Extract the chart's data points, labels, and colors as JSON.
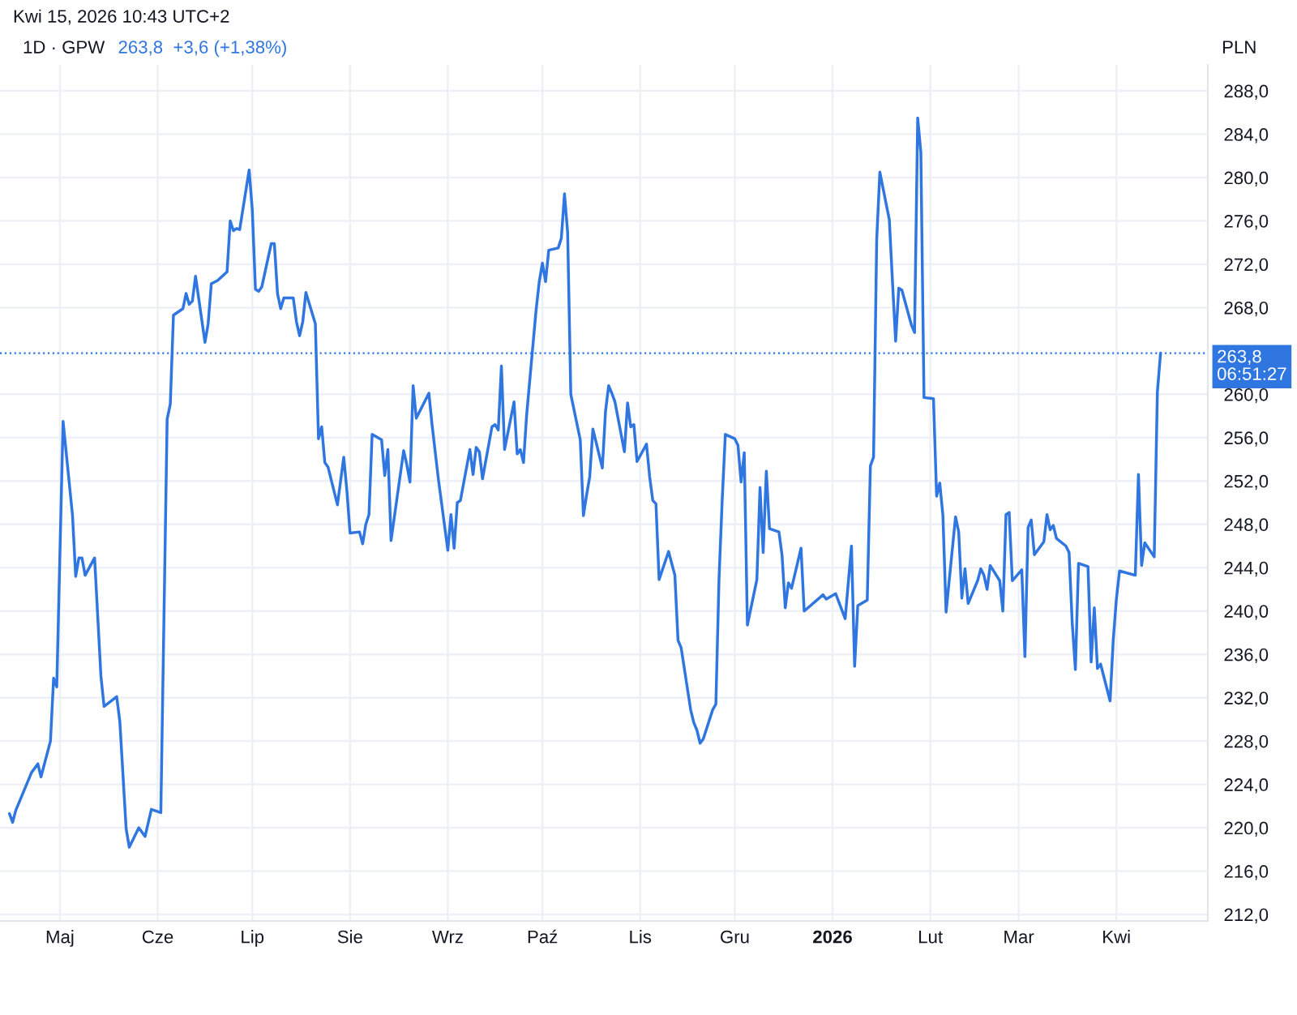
{
  "chart_data": {
    "type": "line",
    "title": "1D · GPW",
    "subtitle": "263,8  +3,6 (+1,38%)",
    "ylabel": "PLN",
    "annotations": [
      "Kwi 15, 2026 10:43 UTC+2"
    ],
    "x": [
      "2025-04-15",
      "2025-04-16",
      "2025-04-17",
      "2025-04-22",
      "2025-04-24",
      "2025-04-25",
      "2025-04-28",
      "2025-04-29",
      "2025-04-30",
      "2025-05-02",
      "2025-05-05",
      "2025-05-06",
      "2025-05-07",
      "2025-05-08",
      "2025-05-09",
      "2025-05-12",
      "2025-05-14",
      "2025-05-15",
      "2025-05-19",
      "2025-05-20",
      "2025-05-22",
      "2025-05-23",
      "2025-05-26",
      "2025-05-28",
      "2025-05-30",
      "2025-06-02",
      "2025-06-04",
      "2025-06-05",
      "2025-06-06",
      "2025-06-09",
      "2025-06-10",
      "2025-06-11",
      "2025-06-12",
      "2025-06-13",
      "2025-06-16",
      "2025-06-17",
      "2025-06-18",
      "2025-06-20",
      "2025-06-23",
      "2025-06-24",
      "2025-06-25",
      "2025-06-26",
      "2025-06-27",
      "2025-06-30",
      "2025-07-01",
      "2025-07-02",
      "2025-07-03",
      "2025-07-04",
      "2025-07-07",
      "2025-07-08",
      "2025-07-09",
      "2025-07-10",
      "2025-07-11",
      "2025-07-14",
      "2025-07-15",
      "2025-07-16",
      "2025-07-17",
      "2025-07-18",
      "2025-07-21",
      "2025-07-22",
      "2025-07-23",
      "2025-07-24",
      "2025-07-25",
      "2025-07-28",
      "2025-07-30",
      "2025-07-31",
      "2025-08-01",
      "2025-08-04",
      "2025-08-05",
      "2025-08-06",
      "2025-08-07",
      "2025-08-08",
      "2025-08-11",
      "2025-08-12",
      "2025-08-13",
      "2025-08-14",
      "2025-08-18",
      "2025-08-19",
      "2025-08-20",
      "2025-08-21",
      "2025-08-22",
      "2025-08-26",
      "2025-08-27",
      "2025-08-29",
      "2025-09-01",
      "2025-09-02",
      "2025-09-03",
      "2025-09-04",
      "2025-09-05",
      "2025-09-08",
      "2025-09-09",
      "2025-09-10",
      "2025-09-11",
      "2025-09-12",
      "2025-09-15",
      "2025-09-16",
      "2025-09-17",
      "2025-09-18",
      "2025-09-19",
      "2025-09-22",
      "2025-09-23",
      "2025-09-24",
      "2025-09-25",
      "2025-09-26",
      "2025-09-29",
      "2025-09-30",
      "2025-10-01",
      "2025-10-02",
      "2025-10-03",
      "2025-10-06",
      "2025-10-07",
      "2025-10-08",
      "2025-10-09",
      "2025-10-10",
      "2025-10-13",
      "2025-10-14",
      "2025-10-15",
      "2025-10-16",
      "2025-10-17",
      "2025-10-20",
      "2025-10-21",
      "2025-10-22",
      "2025-10-23",
      "2025-10-24",
      "2025-10-27",
      "2025-10-28",
      "2025-10-29",
      "2025-10-30",
      "2025-10-31",
      "2025-11-03",
      "2025-11-04",
      "2025-11-05",
      "2025-11-06",
      "2025-11-07",
      "2025-11-10",
      "2025-11-12",
      "2025-11-13",
      "2025-11-14",
      "2025-11-17",
      "2025-11-18",
      "2025-11-19",
      "2025-11-20",
      "2025-11-21",
      "2025-11-24",
      "2025-11-25",
      "2025-11-26",
      "2025-11-27",
      "2025-11-28",
      "2025-12-01",
      "2025-12-02",
      "2025-12-03",
      "2025-12-04",
      "2025-12-05",
      "2025-12-08",
      "2025-12-09",
      "2025-12-10",
      "2025-12-11",
      "2025-12-12",
      "2025-12-15",
      "2025-12-16",
      "2025-12-17",
      "2025-12-18",
      "2025-12-19",
      "2025-12-22",
      "2025-12-23",
      "2025-12-29",
      "2025-12-30",
      "2026-01-02",
      "2026-01-05",
      "2026-01-07",
      "2026-01-08",
      "2026-01-09",
      "2026-01-12",
      "2026-01-13",
      "2026-01-14",
      "2026-01-15",
      "2026-01-16",
      "2026-01-19",
      "2026-01-20",
      "2026-01-21",
      "2026-01-22",
      "2026-01-23",
      "2026-01-26",
      "2026-01-27",
      "2026-01-28",
      "2026-01-29",
      "2026-01-30",
      "2026-02-02",
      "2026-02-03",
      "2026-02-04",
      "2026-02-05",
      "2026-02-06",
      "2026-02-09",
      "2026-02-10",
      "2026-02-11",
      "2026-02-12",
      "2026-02-13",
      "2026-02-16",
      "2026-02-17",
      "2026-02-18",
      "2026-02-19",
      "2026-02-20",
      "2026-02-23",
      "2026-02-24",
      "2026-02-25",
      "2026-02-26",
      "2026-02-27",
      "2026-03-02",
      "2026-03-03",
      "2026-03-04",
      "2026-03-05",
      "2026-03-06",
      "2026-03-09",
      "2026-03-10",
      "2026-03-11",
      "2026-03-12",
      "2026-03-13",
      "2026-03-16",
      "2026-03-17",
      "2026-03-18",
      "2026-03-19",
      "2026-03-20",
      "2026-03-23",
      "2026-03-24",
      "2026-03-25",
      "2026-03-26",
      "2026-03-27",
      "2026-03-30",
      "2026-03-31",
      "2026-04-01",
      "2026-04-02",
      "2026-04-07",
      "2026-04-08",
      "2026-04-09",
      "2026-04-10",
      "2026-04-13",
      "2026-04-14",
      "2026-04-15"
    ],
    "values": [
      221.3,
      220.5,
      221.6,
      225.1,
      225.9,
      224.7,
      228,
      233.8,
      233,
      257.5,
      248.8,
      243.2,
      244.9,
      244.9,
      243.3,
      244.9,
      234,
      231.2,
      232.1,
      229.8,
      219.9,
      218.2,
      220,
      219.2,
      221.7,
      221.4,
      257.7,
      259.1,
      267.3,
      267.9,
      269.3,
      268.3,
      268.6,
      270.9,
      264.8,
      266.5,
      270.2,
      270.5,
      271.3,
      276,
      275.1,
      275.3,
      275.2,
      280.7,
      277,
      269.7,
      269.5,
      269.9,
      273.9,
      273.9,
      269.3,
      267.9,
      268.9,
      268.9,
      266.7,
      265.4,
      266.7,
      269.4,
      266.5,
      255.9,
      257,
      253.7,
      253.3,
      249.8,
      254.2,
      251.1,
      247.2,
      247.3,
      246.2,
      248,
      248.9,
      256.3,
      255.8,
      252.5,
      254.9,
      246.5,
      254.8,
      253.5,
      251.9,
      260.8,
      257.8,
      260.1,
      257.2,
      252.2,
      245.6,
      248.9,
      245.8,
      250,
      250.2,
      254.9,
      252.6,
      255.1,
      254.7,
      252.2,
      257,
      257.2,
      256.7,
      262.6,
      254.9,
      259.3,
      254.5,
      254.9,
      253.7,
      258.1,
      267.8,
      270.4,
      272.1,
      270.4,
      273.3,
      273.5,
      274.4,
      278.5,
      274.9,
      260,
      255.8,
      248.8,
      250.7,
      252.4,
      256.8,
      253.2,
      258.4,
      260.8,
      260.1,
      259.3,
      254.7,
      259.2,
      257,
      257.2,
      253.8,
      255.4,
      252.4,
      250.2,
      249.9,
      242.9,
      245.5,
      243.3,
      237.3,
      236.6,
      230.9,
      229.7,
      229,
      227.8,
      228.2,
      230.9,
      231.4,
      243,
      250.2,
      256.3,
      255.9,
      255.3,
      251.9,
      254.6,
      238.7,
      242.9,
      251.4,
      245.4,
      252.9,
      247.6,
      247.3,
      245.1,
      240.3,
      242.6,
      242.1,
      245.8,
      240,
      241.5,
      241.1,
      241.6,
      239.3,
      246,
      234.9,
      240.5,
      241,
      253.4,
      254.2,
      274.3,
      280.5,
      276.1,
      270.4,
      264.9,
      269.8,
      269.6,
      266.4,
      265.7,
      285.5,
      282.3,
      259.7,
      259.6,
      250.6,
      251.8,
      248.8,
      239.9,
      248.7,
      247.3,
      241.2,
      243.9,
      240.7,
      242.8,
      243.9,
      243.3,
      242,
      244.2,
      242.8,
      240,
      248.9,
      249.1,
      242.8,
      243.8,
      235.8,
      247.7,
      248.4,
      245.2,
      246.4,
      248.9,
      247.5,
      247.9,
      246.7,
      246,
      245.4,
      238.9,
      234.6,
      244.4,
      244.1,
      235.3,
      240.3,
      234.7,
      235.1,
      231.7,
      237.3,
      241.1,
      243.7,
      243.3,
      252.6,
      244.2,
      246.3,
      245,
      260.2,
      263.8
    ],
    "color": "#2f76e0",
    "xlim": [
      "2025-04-12",
      "2026-04-30"
    ],
    "xticks": [
      {
        "value": "2025-05-01",
        "label": "Maj"
      },
      {
        "value": "2025-06-01",
        "label": "Cze"
      },
      {
        "value": "2025-07-01",
        "label": "Lip"
      },
      {
        "value": "2025-08-01",
        "label": "Sie"
      },
      {
        "value": "2025-09-01",
        "label": "Wrz"
      },
      {
        "value": "2025-10-01",
        "label": "Paź"
      },
      {
        "value": "2025-11-01",
        "label": "Lis"
      },
      {
        "value": "2025-12-01",
        "label": "Gru"
      },
      {
        "value": "2026-01-01",
        "label": "2026"
      },
      {
        "value": "2026-02-01",
        "label": "Lut"
      },
      {
        "value": "2026-03-01",
        "label": "Mar"
      },
      {
        "value": "2026-04-01",
        "label": "Kwi"
      }
    ],
    "ylim": [
      211.4,
      290.4
    ],
    "yticks": [
      {
        "value": 212,
        "label": "212,0"
      },
      {
        "value": 216,
        "label": "216,0"
      },
      {
        "value": 220,
        "label": "220,0"
      },
      {
        "value": 224,
        "label": "224,0"
      },
      {
        "value": 228,
        "label": "228,0"
      },
      {
        "value": 232,
        "label": "232,0"
      },
      {
        "value": 236,
        "label": "236,0"
      },
      {
        "value": 240,
        "label": "240,0"
      },
      {
        "value": 244,
        "label": "244,0"
      },
      {
        "value": 248,
        "label": "248,0"
      },
      {
        "value": 252,
        "label": "252,0"
      },
      {
        "value": 256,
        "label": "256,0"
      },
      {
        "value": 260,
        "label": "260,0"
      },
      {
        "value": 268,
        "label": "268,0"
      },
      {
        "value": 272,
        "label": "272,0"
      },
      {
        "value": 276,
        "label": "276,0"
      },
      {
        "value": 280,
        "label": "280,0"
      },
      {
        "value": 284,
        "label": "284,0"
      },
      {
        "value": 288,
        "label": "288,0"
      }
    ],
    "ref_lines": [
      {
        "axis": "y",
        "value": 263.8,
        "label": "263,8\n06:51:27",
        "color": "#2f76e0",
        "line_style": "dotted"
      }
    ],
    "grid": true
  }
}
